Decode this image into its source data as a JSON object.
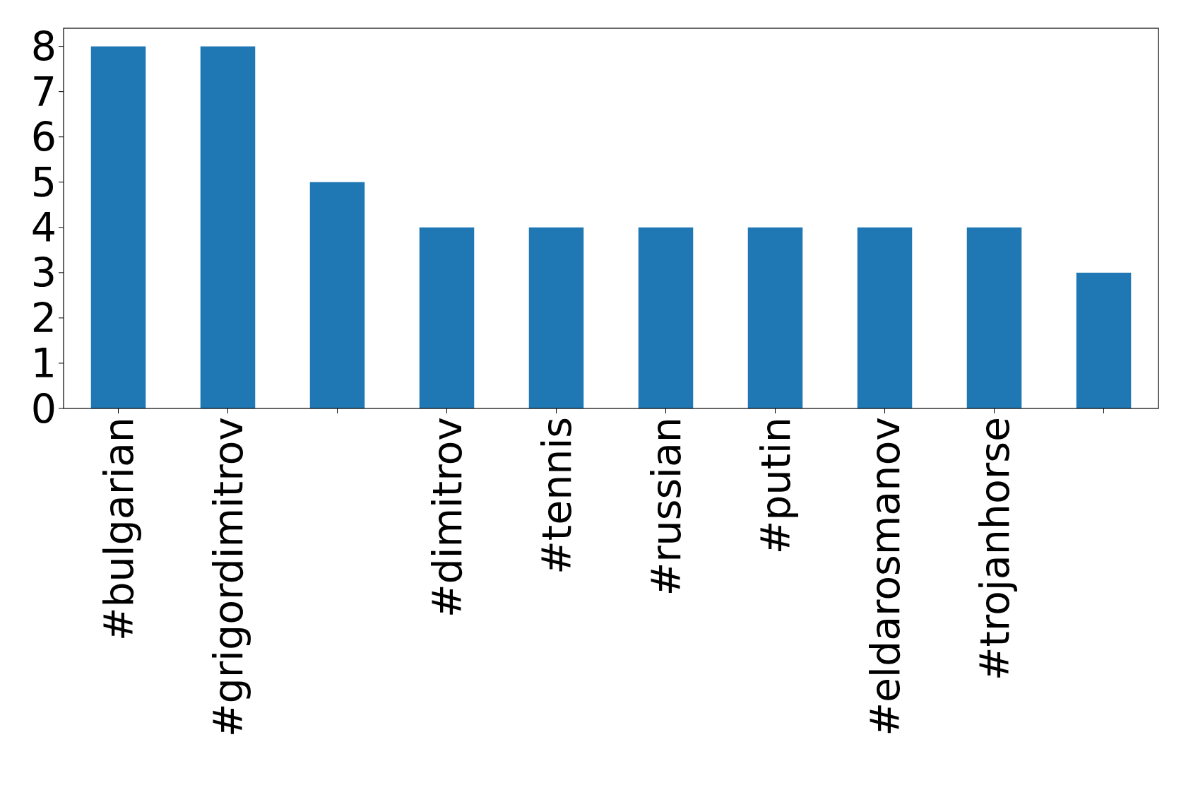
{
  "chart_data": {
    "type": "bar",
    "categories": [
      "#bulgarian",
      "#grigordimitrov",
      null,
      "#dimitrov",
      "#tennis",
      "#russian",
      "#putin",
      "#eldarosmanov",
      "#trojanhorse",
      null
    ],
    "values": [
      8,
      8,
      5,
      4,
      4,
      4,
      4,
      4,
      4,
      3
    ],
    "color": "#1f77b4",
    "ylim": [
      0,
      8.4
    ],
    "yticks": [
      0,
      1,
      2,
      3,
      4,
      5,
      6,
      7,
      8
    ],
    "grid": false
  }
}
